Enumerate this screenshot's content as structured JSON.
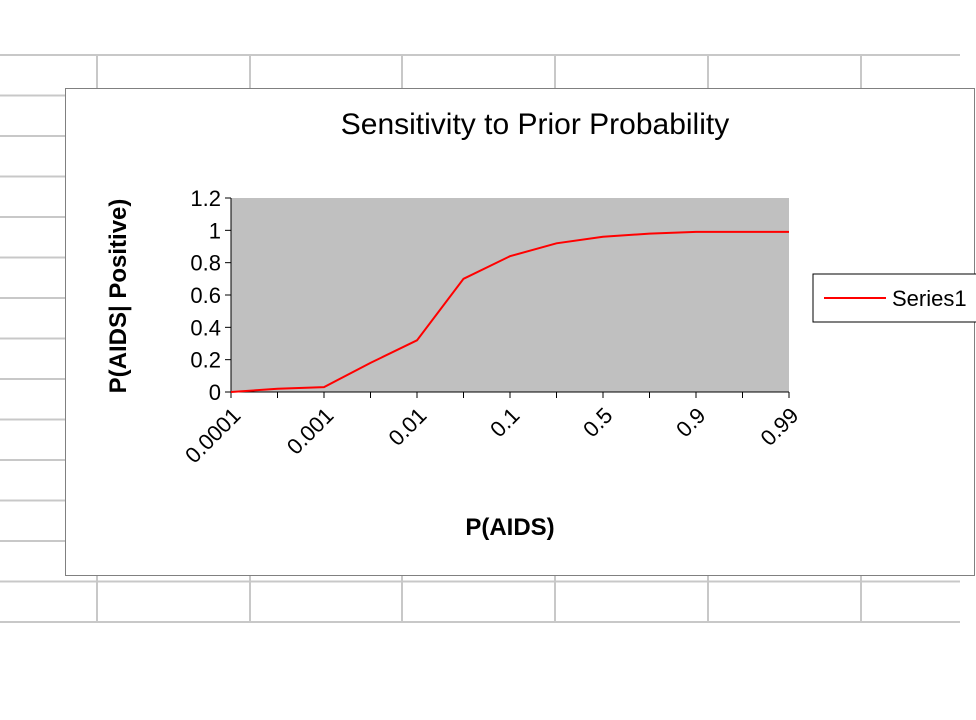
{
  "colors": {
    "plot_background": "#c0c0c0",
    "series_line": "#ff0000",
    "grid_lines": "#c8c8c8",
    "axis": "#000000"
  },
  "chart_data": {
    "type": "line",
    "title": "Sensitivity to Prior Probability",
    "xlabel": "P(AIDS)",
    "ylabel": "P(AIDS| Positive)",
    "x_tick_labels": [
      "0.0001",
      "0.001",
      "0.01",
      "0.1",
      "0.5",
      "0.9",
      "0.99"
    ],
    "categories_count": 13,
    "labeled_category_step": 2,
    "ylim": [
      0,
      1.2
    ],
    "y_ticks": [
      "0",
      "0.2",
      "0.4",
      "0.6",
      "0.8",
      "1",
      "1.2"
    ],
    "grid": false,
    "legend_position": "right",
    "series": [
      {
        "name": "Series1",
        "color": "#ff0000",
        "values": [
          0.0,
          0.02,
          0.03,
          0.18,
          0.32,
          0.7,
          0.84,
          0.92,
          0.96,
          0.98,
          0.99,
          0.99,
          0.99
        ]
      }
    ]
  }
}
